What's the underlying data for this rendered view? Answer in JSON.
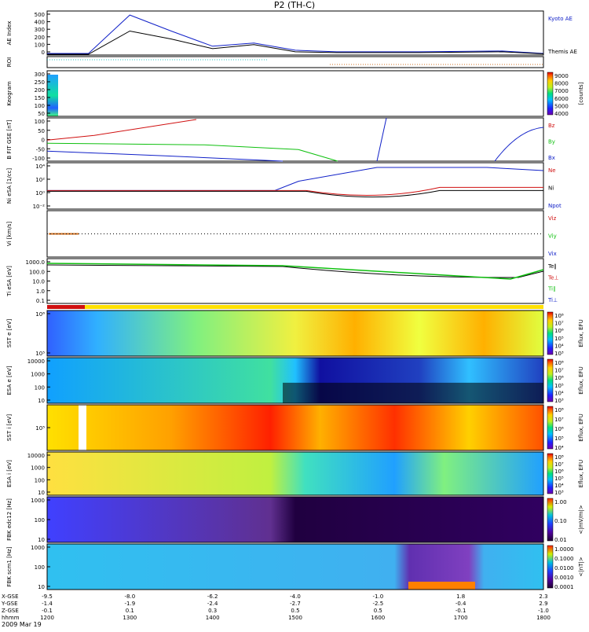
{
  "title": "P2 (TH-C)",
  "date_label": "2009 Mar 19",
  "colors": {
    "blue": "#1020c8",
    "red": "#d01010",
    "green": "#10c010",
    "black": "#000000",
    "cyan": "#20c0c0",
    "yellow": "#ffe000"
  },
  "x_axis": {
    "rows": [
      {
        "label": "X-GSE",
        "values": [
          "-9.5",
          "-8.0",
          "-6.2",
          "-4.0",
          "-1.0",
          "1.8",
          "2.3"
        ]
      },
      {
        "label": "Y-GSE",
        "values": [
          "-1.4",
          "-1.9",
          "-2.4",
          "-2.7",
          "-2.5",
          "-0.4",
          "2.9"
        ]
      },
      {
        "label": "Z-GSE",
        "values": [
          "-0.1",
          "0.1",
          "0.3",
          "0.5",
          "0.5",
          "-0.1",
          "-1.0"
        ]
      },
      {
        "label": "hhmm",
        "values": [
          "1200",
          "1300",
          "1400",
          "1500",
          "1600",
          "1700",
          "1800"
        ]
      }
    ]
  },
  "chart_data": [
    {
      "type": "line",
      "panel": "ae",
      "ylabel": "AE Index",
      "ylim": [
        0,
        550
      ],
      "yticks": [
        "500",
        "400",
        "300",
        "200",
        "100",
        "0"
      ],
      "x": [
        "1200",
        "1230",
        "1300",
        "1330",
        "1400",
        "1430",
        "1500",
        "1530",
        "1600",
        "1630",
        "1700",
        "1730",
        "1800"
      ],
      "series": [
        {
          "name": "Kyoto AE",
          "color": "#1020c8",
          "values": [
            20,
            20,
            500,
            300,
            110,
            150,
            60,
            40,
            40,
            40,
            45,
            50,
            20
          ]
        },
        {
          "name": "Themis AE",
          "color": "#000000",
          "values": [
            10,
            10,
            300,
            200,
            80,
            130,
            40,
            30,
            30,
            30,
            35,
            40,
            15
          ]
        }
      ]
    },
    {
      "type": "table",
      "panel": "roi",
      "ylabel": "ROI"
    },
    {
      "type": "heatmap",
      "panel": "keogram",
      "ylabel": "Keogram",
      "yticks": [
        "300",
        "250",
        "200",
        "150",
        "100",
        "50"
      ],
      "colorbar": {
        "label": "[counts]",
        "ticks": [
          "9000",
          "8000",
          "7000",
          "6000",
          "5000",
          "4000"
        ]
      }
    },
    {
      "type": "line",
      "panel": "bfit",
      "ylabel": "B FIT GSE [nT]",
      "yticks": [
        "100",
        "50",
        "0",
        "-50",
        "-100"
      ],
      "series": [
        {
          "name": "Bz",
          "color": "#d01010"
        },
        {
          "name": "By",
          "color": "#10c010"
        },
        {
          "name": "Bx",
          "color": "#1020c8"
        }
      ]
    },
    {
      "type": "line",
      "panel": "ni",
      "ylabel": "Ni eSA [1/cc]",
      "yticks": [
        "10⁴",
        "10²",
        "10⁰",
        "10⁻²"
      ],
      "series": [
        {
          "name": "Ne",
          "color": "#d01010"
        },
        {
          "name": "Ni",
          "color": "#000000"
        },
        {
          "name": "Npot",
          "color": "#1020c8"
        }
      ]
    },
    {
      "type": "line",
      "panel": "vi",
      "ylabel": "Vi [km/s]",
      "series": [
        {
          "name": "Viz",
          "color": "#d01010"
        },
        {
          "name": "Viy",
          "color": "#10c010"
        },
        {
          "name": "Vix",
          "color": "#1020c8"
        }
      ]
    },
    {
      "type": "line",
      "panel": "ti",
      "ylabel": "Ti eSA [eV]",
      "yticks": [
        "1000.0",
        "100.0",
        "10.0",
        "1.0",
        "0.1"
      ],
      "series": [
        {
          "name": "Te∥",
          "color": "#000000"
        },
        {
          "name": "Te⊥",
          "color": "#d01010"
        },
        {
          "name": "Ti∥",
          "color": "#10c010"
        },
        {
          "name": "Ti⊥",
          "color": "#1020c8"
        }
      ]
    },
    {
      "type": "heatmap",
      "panel": "sst_e",
      "ylabel": "SST e [eV]",
      "yticks": [
        "10⁶",
        "10⁵"
      ],
      "colorbar": {
        "label": "Eflux, EFU",
        "ticks": [
          "10⁸",
          "10⁷",
          "10⁶",
          "10⁵",
          "10⁴",
          "10³"
        ]
      }
    },
    {
      "type": "heatmap",
      "panel": "esa_e",
      "ylabel": "ESA e [eV]",
      "yticks": [
        "10000",
        "1000",
        "100",
        "10"
      ],
      "colorbar": {
        "label": "Eflux, EFU",
        "ticks": [
          "10⁸",
          "10⁷",
          "10⁶",
          "10⁵",
          "10⁴",
          "10³"
        ]
      }
    },
    {
      "type": "heatmap",
      "panel": "sst_i",
      "ylabel": "SST i [eV]",
      "yticks": [
        "10⁵"
      ],
      "colorbar": {
        "label": "Eflux, EFU",
        "ticks": [
          "10⁸",
          "10⁷",
          "10⁶",
          "10⁵",
          "10⁴"
        ]
      }
    },
    {
      "type": "heatmap",
      "panel": "esa_i",
      "ylabel": "ESA i [eV]",
      "yticks": [
        "10000",
        "1000",
        "100",
        "10"
      ],
      "colorbar": {
        "label": "Eflux, EFU",
        "ticks": [
          "10⁸",
          "10⁷",
          "10⁶",
          "10⁵",
          "10⁴",
          "10³"
        ]
      }
    },
    {
      "type": "heatmap",
      "panel": "fbk_e",
      "ylabel": "FBK edc12 [Hz]",
      "yticks": [
        "1000",
        "100",
        "10"
      ],
      "colorbar": {
        "label": "<|mV/m|>",
        "ticks": [
          "1.00",
          "0.10",
          "0.01"
        ]
      }
    },
    {
      "type": "heatmap",
      "panel": "fbk_b",
      "ylabel": "FBK scm1 [Hz]",
      "yticks": [
        "1000",
        "100",
        "10"
      ],
      "colorbar": {
        "label": "<|nT|>",
        "ticks": [
          "1.0000",
          "0.1000",
          "0.0100",
          "0.0010",
          "0.0001"
        ]
      }
    }
  ]
}
